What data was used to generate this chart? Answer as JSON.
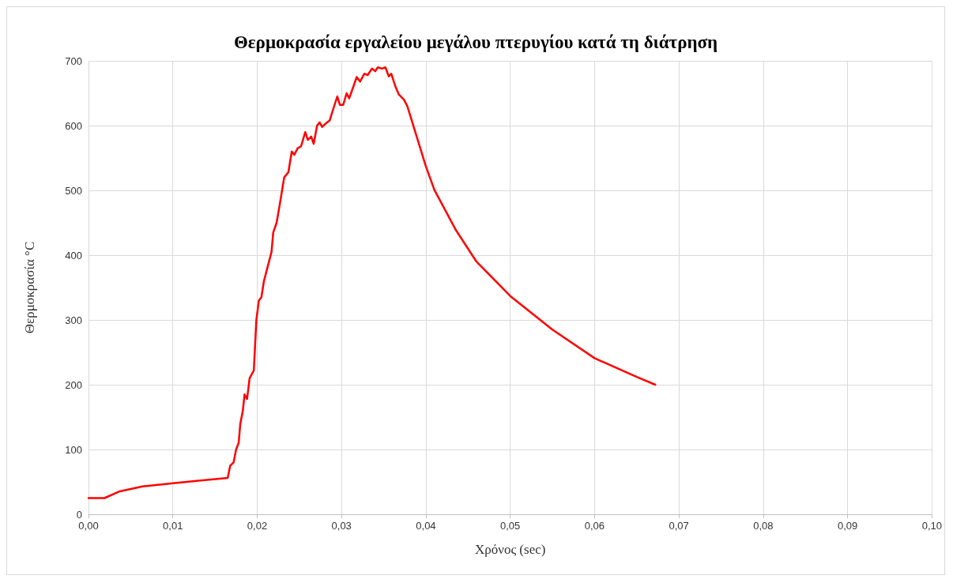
{
  "chart_data": {
    "type": "line",
    "title": "Θερμοκρασία εργαλείου μεγάλου πτερυγίου κατά τη διάτρηση",
    "xlabel": "Χρόνος (sec)",
    "ylabel": "Θερμοκρασία °C",
    "grid": true,
    "marker": "none",
    "line_style": "solid",
    "xlim": [
      0,
      0.1
    ],
    "xticks": [
      {
        "value": 0,
        "label": "0,00"
      },
      {
        "value": 0.01,
        "label": "0,01"
      },
      {
        "value": 0.02,
        "label": "0,02"
      },
      {
        "value": 0.03,
        "label": "0,03"
      },
      {
        "value": 0.04,
        "label": "0,04"
      },
      {
        "value": 0.05,
        "label": "0,05"
      },
      {
        "value": 0.06,
        "label": "0,06"
      },
      {
        "value": 0.07,
        "label": "0,07"
      },
      {
        "value": 0.08,
        "label": "0,08"
      },
      {
        "value": 0.09,
        "label": "0,09"
      },
      {
        "value": 0.1,
        "label": "0,10"
      }
    ],
    "ylim": [
      0,
      700
    ],
    "yticks": [
      0,
      100,
      200,
      300,
      400,
      500,
      600,
      700
    ],
    "series": [
      {
        "color": "#ff0000",
        "x": [
          0,
          0.0019,
          0.0036,
          0.0064,
          0.01,
          0.0165,
          0.0168,
          0.0172,
          0.0175,
          0.0178,
          0.018,
          0.0183,
          0.0185,
          0.0188,
          0.0191,
          0.0196,
          0.0199,
          0.0202,
          0.0205,
          0.0208,
          0.0212,
          0.0217,
          0.0219,
          0.0223,
          0.0227,
          0.0232,
          0.0237,
          0.0241,
          0.0244,
          0.0248,
          0.0252,
          0.0257,
          0.026,
          0.0264,
          0.0267,
          0.0271,
          0.0274,
          0.0277,
          0.0281,
          0.0286,
          0.029,
          0.0295,
          0.0298,
          0.0302,
          0.0306,
          0.0309,
          0.0314,
          0.0318,
          0.0322,
          0.0327,
          0.0331,
          0.0336,
          0.034,
          0.0343,
          0.0348,
          0.0352,
          0.0356,
          0.0359,
          0.0364,
          0.0368,
          0.0374,
          0.0378,
          0.04,
          0.041,
          0.0435,
          0.046,
          0.05,
          0.055,
          0.06,
          0.065,
          0.0672
        ],
        "values": [
          25,
          25,
          35,
          43,
          48,
          56,
          75,
          80,
          100,
          110,
          140,
          160,
          185,
          178,
          210,
          222,
          300,
          330,
          335,
          360,
          380,
          405,
          435,
          450,
          480,
          520,
          528,
          560,
          555,
          565,
          568,
          590,
          578,
          583,
          572,
          600,
          605,
          598,
          603,
          608,
          625,
          645,
          632,
          632,
          650,
          642,
          660,
          675,
          668,
          680,
          678,
          688,
          684,
          690,
          688,
          690,
          676,
          680,
          660,
          648,
          640,
          630,
          537,
          501,
          440,
          390,
          337,
          285,
          241,
          212,
          200
        ]
      }
    ]
  }
}
